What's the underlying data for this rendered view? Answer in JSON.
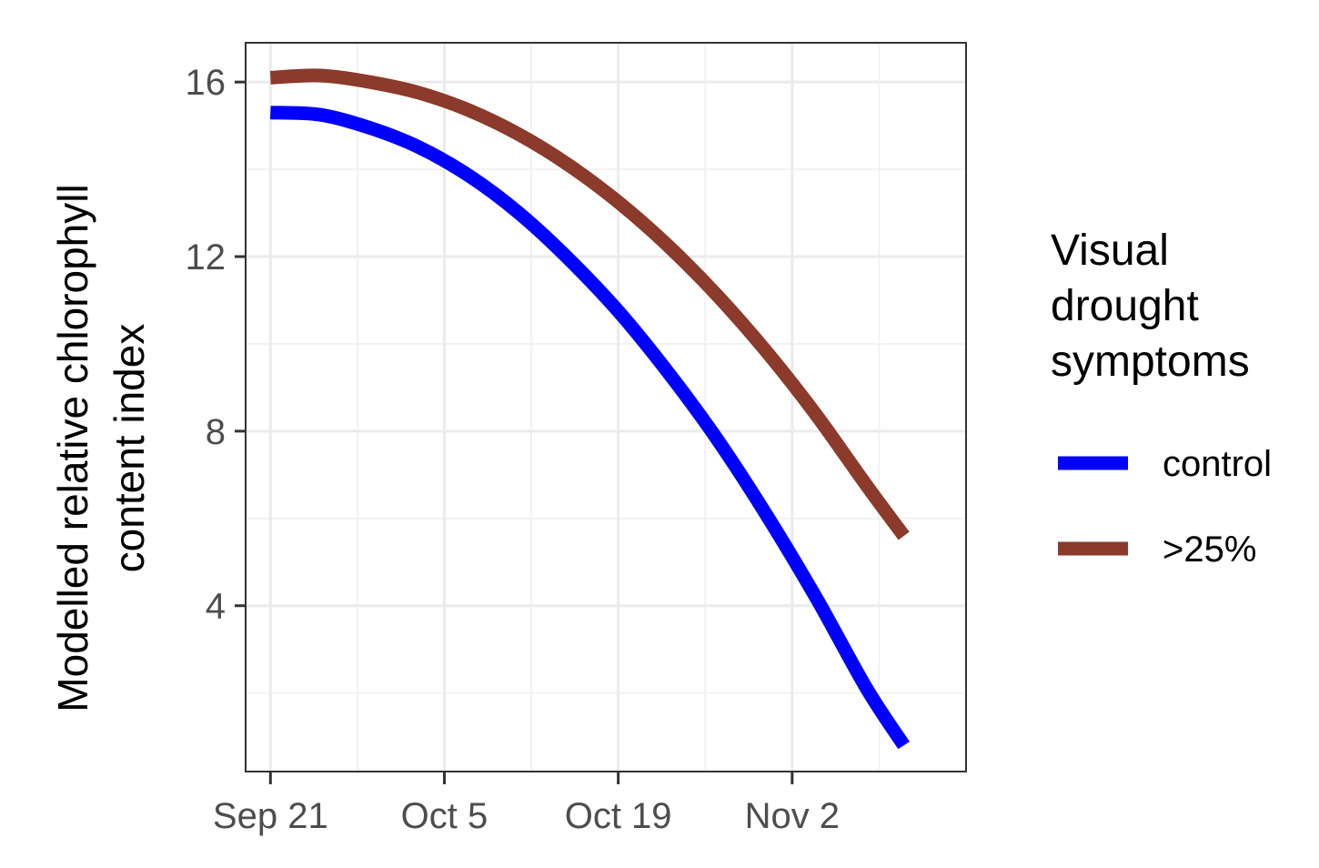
{
  "chart_data": {
    "type": "line",
    "title": "",
    "ylabel_lines": [
      "Modelled relative chlorophyll",
      "content index"
    ],
    "xlabel": "",
    "x_ticks": [
      {
        "date": "2021-09-21",
        "label": "Sep 21"
      },
      {
        "date": "2021-10-05",
        "label": "Oct 5"
      },
      {
        "date": "2021-10-19",
        "label": "Oct 19"
      },
      {
        "date": "2021-11-02",
        "label": "Nov 2"
      }
    ],
    "xlim": [
      "2021-09-19",
      "2021-11-16"
    ],
    "y_ticks": [
      4,
      8,
      12,
      16
    ],
    "ylim": [
      0.2,
      16.9
    ],
    "grid": true,
    "legend": {
      "title_lines": [
        "Visual",
        "drought",
        "symptoms"
      ],
      "position": "right"
    },
    "series": [
      {
        "name": "control",
        "color": "#0000ff",
        "x": [
          "2021-09-21",
          "2021-09-25",
          "2021-09-29",
          "2021-10-03",
          "2021-10-07",
          "2021-10-11",
          "2021-10-15",
          "2021-10-19",
          "2021-10-23",
          "2021-10-27",
          "2021-10-31",
          "2021-11-04",
          "2021-11-08",
          "2021-11-11"
        ],
        "y": [
          15.3,
          15.25,
          14.95,
          14.5,
          13.85,
          13.0,
          11.95,
          10.75,
          9.35,
          7.8,
          6.05,
          4.15,
          2.1,
          0.8
        ]
      },
      {
        "name": ">25%",
        "color": "#8b3a2b",
        "x": [
          "2021-09-21",
          "2021-09-25",
          "2021-09-29",
          "2021-10-03",
          "2021-10-07",
          "2021-10-11",
          "2021-10-15",
          "2021-10-19",
          "2021-10-23",
          "2021-10-27",
          "2021-10-31",
          "2021-11-04",
          "2021-11-08",
          "2021-11-11"
        ],
        "y": [
          16.1,
          16.15,
          16.0,
          15.75,
          15.35,
          14.8,
          14.1,
          13.25,
          12.25,
          11.1,
          9.8,
          8.35,
          6.75,
          5.6
        ]
      }
    ]
  }
}
